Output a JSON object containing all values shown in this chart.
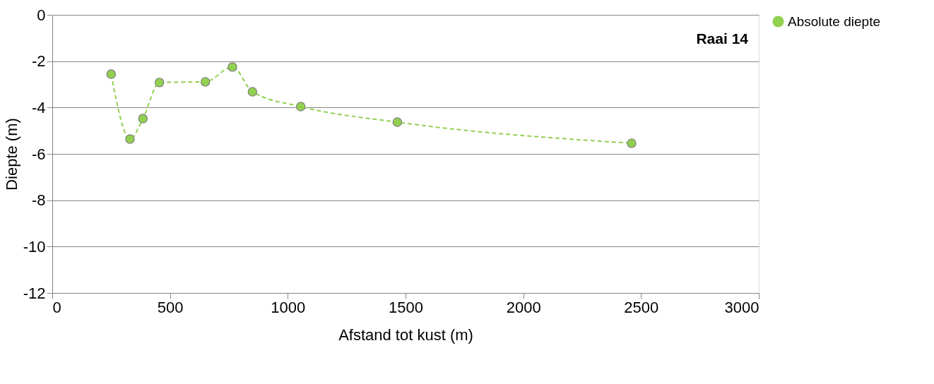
{
  "chart_data": {
    "type": "line",
    "xlabel": "Afstand tot kust (m)",
    "ylabel": "Diepte (m)",
    "annotations": [
      "Raai 14"
    ],
    "x": [
      250,
      330,
      385,
      455,
      650,
      765,
      850,
      1055,
      1465,
      2460
    ],
    "series": [
      {
        "name": "Absolute diepte",
        "color": "#92d050",
        "values": [
          -2.56,
          -5.36,
          -4.48,
          -2.92,
          -2.89,
          -2.25,
          -3.32,
          -3.96,
          -4.63,
          -5.54
        ]
      }
    ],
    "xlim": [
      0,
      3000
    ],
    "xticks": [
      0,
      500,
      1000,
      1500,
      2000,
      2500,
      3000
    ],
    "ylim": [
      -12,
      0
    ],
    "yticks": [
      -12,
      -10,
      -8,
      -6,
      -4,
      -2,
      0
    ],
    "grid": "y",
    "legend": "right",
    "marker": "circle",
    "line_style": "dashed"
  }
}
